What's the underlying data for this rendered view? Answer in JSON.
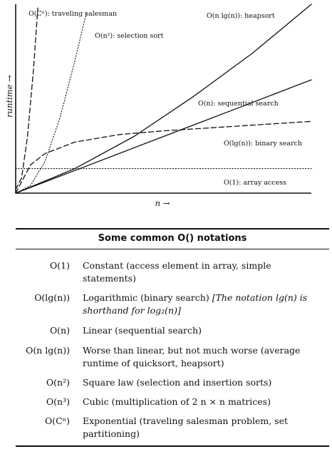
{
  "chart_data": {
    "type": "line",
    "xlabel": "n →",
    "ylabel": "runtime →",
    "xlim": [
      0,
      1
    ],
    "ylim": [
      0,
      1
    ],
    "grid": false,
    "series": [
      {
        "name": "O(Cⁿ): traveling salesman",
        "style": "dashed",
        "x": [
          0,
          0.02,
          0.04,
          0.06,
          0.075
        ],
        "y": [
          0.02,
          0.08,
          0.3,
          0.65,
          0.98
        ]
      },
      {
        "name": "O(n²): selection sort",
        "style": "dotted",
        "x": [
          0,
          0.05,
          0.1,
          0.15,
          0.2,
          0.24
        ],
        "y": [
          0.0,
          0.04,
          0.17,
          0.4,
          0.7,
          0.96
        ]
      },
      {
        "name": "O(n lg(n)): heapsort",
        "style": "solid",
        "x": [
          0,
          0.2,
          0.4,
          0.6,
          0.8,
          1.0
        ],
        "y": [
          0.0,
          0.13,
          0.3,
          0.51,
          0.74,
          1.0
        ]
      },
      {
        "name": "O(n): sequential search",
        "style": "solid",
        "x": [
          0,
          0.25,
          0.5,
          0.75,
          1.0
        ],
        "y": [
          0.0,
          0.15,
          0.3,
          0.45,
          0.6
        ]
      },
      {
        "name": "O(lg(n)): binary search",
        "style": "dashed",
        "x": [
          0,
          0.05,
          0.1,
          0.2,
          0.35,
          0.5,
          0.7,
          1.0
        ],
        "y": [
          0.0,
          0.15,
          0.21,
          0.27,
          0.31,
          0.33,
          0.35,
          0.38
        ]
      },
      {
        "name": "O(1): array access",
        "style": "dotted",
        "x": [
          0,
          1.0
        ],
        "y": [
          0.13,
          0.13
        ]
      }
    ]
  },
  "table": {
    "title": "Some common O() notations",
    "rows": [
      {
        "notation": "O(1)",
        "description": "Constant (access element in array, simple statements)",
        "note": ""
      },
      {
        "notation": "O(lg(n))",
        "description": "Logarithmic (binary search)",
        "note": "[The notation lg(n) is shorthand for log₂(n)]"
      },
      {
        "notation": "O(n)",
        "description": "Linear (sequential search)",
        "note": ""
      },
      {
        "notation": "O(n lg(n))",
        "description": "Worse than linear, but not much worse (average runtime of quicksort, heapsort)",
        "note": ""
      },
      {
        "notation": "O(n²)",
        "description": "Square law (selection and insertion sorts)",
        "note": ""
      },
      {
        "notation": "O(n³)",
        "description": "Cubic (multiplication of 2 n × n matrices)",
        "note": ""
      },
      {
        "notation": "O(Cⁿ)",
        "description": "Exponential (traveling salesman problem, set partitioning)",
        "note": ""
      }
    ]
  }
}
